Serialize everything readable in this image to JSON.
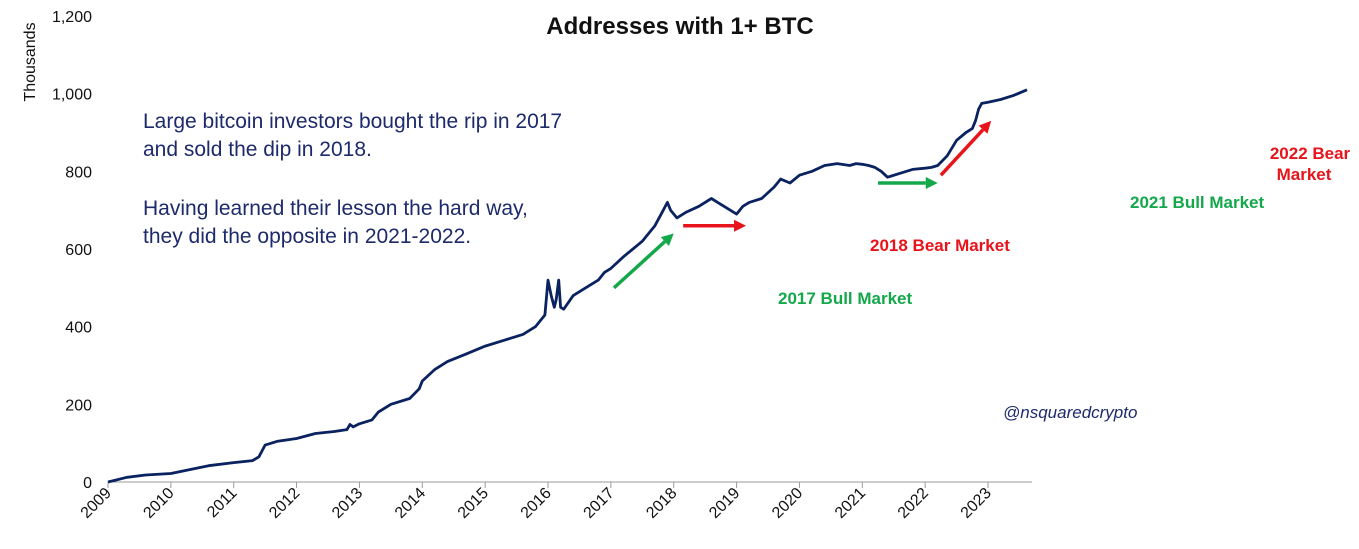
{
  "chart_data": {
    "type": "line",
    "title": "Addresses with 1+ BTC",
    "ylabel": "Thousands",
    "xlabel": "",
    "ylim": [
      0,
      1200
    ],
    "xlim": [
      2009,
      2023.62
    ],
    "yticks": [
      0,
      200,
      400,
      600,
      800,
      1000,
      1200
    ],
    "ytick_labels": [
      "0",
      "200",
      "400",
      "600",
      "800",
      "1,000",
      "1,200"
    ],
    "xticks": [
      2009,
      2010,
      2011,
      2012,
      2013,
      2014,
      2015,
      2016,
      2017,
      2018,
      2019,
      2020,
      2021,
      2022,
      2023
    ],
    "xtick_labels": [
      "2009",
      "2010",
      "2011",
      "2012",
      "2013",
      "2014",
      "2015",
      "2016",
      "2017",
      "2018",
      "2019",
      "2020",
      "2021",
      "2022",
      "2023"
    ],
    "series": [
      {
        "name": "Addresses with 1+ BTC",
        "color": "#0b2260",
        "x": [
          2009.0,
          2009.3,
          2009.6,
          2010.0,
          2010.3,
          2010.6,
          2011.0,
          2011.3,
          2011.4,
          2011.5,
          2011.7,
          2012.0,
          2012.3,
          2012.6,
          2012.8,
          2012.85,
          2012.9,
          2013.0,
          2013.2,
          2013.3,
          2013.5,
          2013.8,
          2013.95,
          2014.0,
          2014.2,
          2014.4,
          2014.7,
          2015.0,
          2015.3,
          2015.6,
          2015.8,
          2015.95,
          2016.0,
          2016.05,
          2016.1,
          2016.13,
          2016.17,
          2016.2,
          2016.25,
          2016.4,
          2016.6,
          2016.8,
          2016.9,
          2017.0,
          2017.2,
          2017.35,
          2017.5,
          2017.6,
          2017.7,
          2017.8,
          2017.9,
          2017.95,
          2018.05,
          2018.2,
          2018.4,
          2018.6,
          2018.7,
          2018.9,
          2019.0,
          2019.1,
          2019.2,
          2019.4,
          2019.6,
          2019.7,
          2019.85,
          2020.0,
          2020.2,
          2020.4,
          2020.6,
          2020.8,
          2020.9,
          2021.0,
          2021.1,
          2021.2,
          2021.3,
          2021.4,
          2021.6,
          2021.8,
          2022.0,
          2022.1,
          2022.2,
          2022.35,
          2022.5,
          2022.65,
          2022.75,
          2022.8,
          2022.85,
          2022.9,
          2023.0,
          2023.2,
          2023.4,
          2023.62
        ],
        "y": [
          0,
          12,
          18,
          22,
          32,
          42,
          50,
          55,
          65,
          95,
          105,
          112,
          125,
          130,
          135,
          148,
          142,
          150,
          160,
          180,
          200,
          215,
          240,
          260,
          290,
          310,
          330,
          350,
          365,
          380,
          400,
          430,
          520,
          480,
          450,
          470,
          520,
          450,
          445,
          480,
          500,
          520,
          540,
          550,
          580,
          600,
          620,
          640,
          660,
          690,
          720,
          700,
          680,
          695,
          710,
          730,
          720,
          700,
          690,
          710,
          720,
          730,
          760,
          780,
          770,
          790,
          800,
          815,
          820,
          815,
          820,
          818,
          815,
          810,
          800,
          785,
          795,
          805,
          808,
          810,
          815,
          840,
          880,
          900,
          910,
          930,
          960,
          975,
          978,
          985,
          995,
          1010
        ]
      }
    ],
    "grid": false,
    "annotations": [
      {
        "text": "2017 Bull Market",
        "color": "#14a84b"
      },
      {
        "text": "2018 Bear Market",
        "color": "#e8141b"
      },
      {
        "text": "2021 Bull Market",
        "color": "#14a84b"
      },
      {
        "text": "2022 Bear",
        "color": "#e8141b"
      },
      {
        "text": "Market",
        "color": "#e8141b"
      }
    ],
    "arrows": [
      {
        "from": [
          2017.05,
          500
        ],
        "to": [
          2018.0,
          640
        ],
        "color": "#14a84b"
      },
      {
        "from": [
          2018.15,
          660
        ],
        "to": [
          2019.15,
          660
        ],
        "color": "#e8141b"
      },
      {
        "from": [
          2021.25,
          770
        ],
        "to": [
          2022.2,
          770
        ],
        "color": "#14a84b"
      },
      {
        "from": [
          2022.25,
          790
        ],
        "to": [
          2023.05,
          930
        ],
        "color": "#e8141b"
      }
    ]
  },
  "note": {
    "line1": "Large bitcoin investors bought the rip in 2017",
    "line2": "and sold the dip in 2018.",
    "line3": "Having learned their lesson the hard way,",
    "line4": "they did the opposite in 2021-2022."
  },
  "credit": "@nsquaredcrypto"
}
